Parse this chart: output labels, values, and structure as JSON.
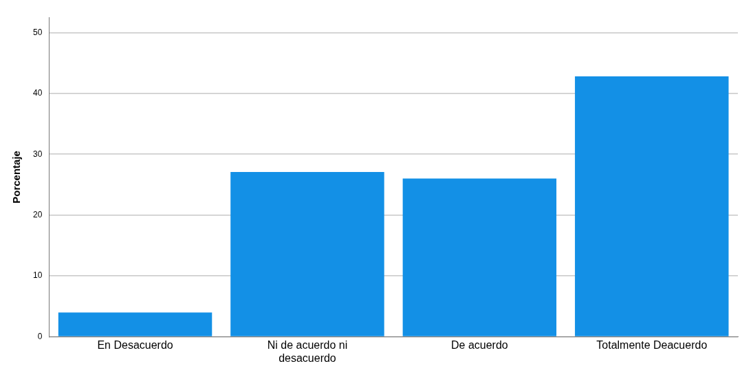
{
  "chart_data": {
    "type": "bar",
    "ylabel": "Porcentaje",
    "categories": [
      "En Desacuerdo",
      "Ni de acuerdo ni desacuerdo",
      "De acuerdo",
      "Totalmente Deacuerdo"
    ],
    "values": [
      4.0,
      27.1,
      26.0,
      42.8
    ],
    "color": "#1390e6",
    "ylim": [
      0,
      52.5
    ],
    "yticks": [
      0,
      10,
      20,
      30,
      40,
      50
    ],
    "grid": "y",
    "legend": false
  }
}
